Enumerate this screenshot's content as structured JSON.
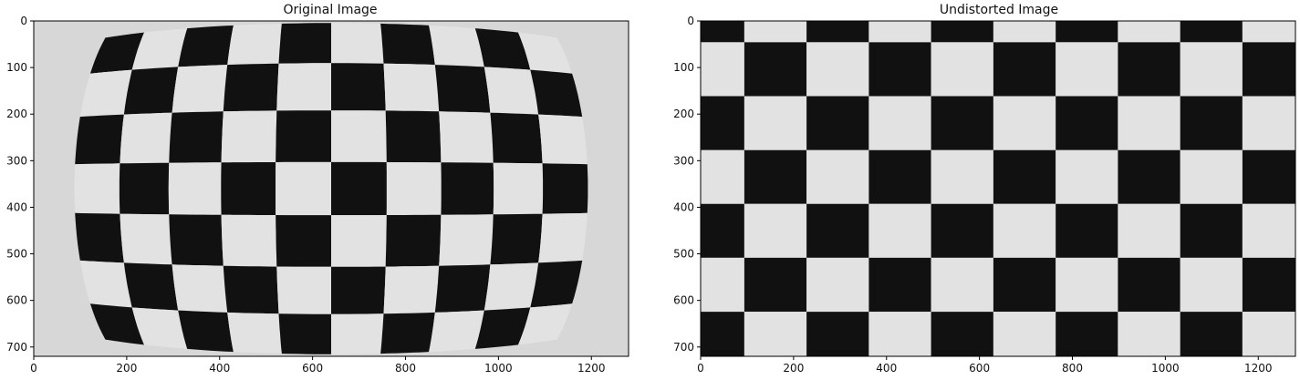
{
  "figure": {
    "panels": [
      {
        "title": "Original Image",
        "x_ticks": [
          "0",
          "200",
          "400",
          "600",
          "800",
          "1000",
          "1200"
        ],
        "y_ticks": [
          "0",
          "100",
          "200",
          "300",
          "400",
          "500",
          "600",
          "700"
        ],
        "image": "distorted-checkerboard-photo"
      },
      {
        "title": "Undistorted Image",
        "x_ticks": [
          "0",
          "200",
          "400",
          "600",
          "800",
          "1000",
          "1200"
        ],
        "y_ticks": [
          "0",
          "100",
          "200",
          "300",
          "400",
          "500",
          "600",
          "700"
        ],
        "image": "undistorted-checkerboard-photo"
      }
    ],
    "colors": {
      "dark": "#111111",
      "light": "#e2e2e2",
      "axis": "#000000"
    }
  }
}
